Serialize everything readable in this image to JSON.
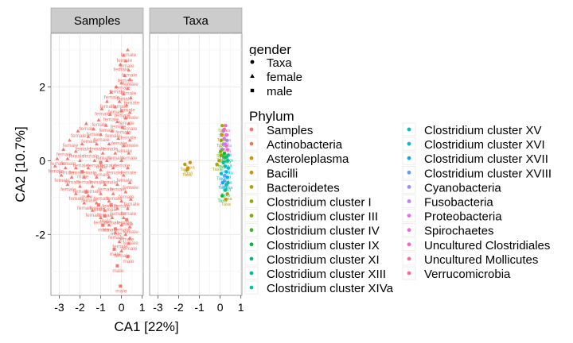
{
  "chart_data": {
    "type": "scatter",
    "facets": [
      "Samples",
      "Taxa"
    ],
    "xlabel": "CA1   [22%]",
    "ylabel": "CA2   [10.7%]",
    "xlim": [
      -3.4,
      1.05
    ],
    "ylim": [
      -3.65,
      3.45
    ],
    "xticks": [
      -3,
      -2,
      -1,
      0,
      1
    ],
    "yticks": [
      -2,
      0,
      2
    ],
    "grid": true,
    "legend_position": "right",
    "shape_legend": {
      "title": "gender",
      "entries": [
        {
          "label": "Taxa",
          "shape": "circle"
        },
        {
          "label": "female",
          "shape": "triangle"
        },
        {
          "label": "male",
          "shape": "square"
        }
      ]
    },
    "color_legend": {
      "title": "Phylum",
      "entries": [
        {
          "label": "Samples",
          "color": "#F8766D"
        },
        {
          "label": "Actinobacteria",
          "color": "#EE7D4E"
        },
        {
          "label": "Asteroleplasma",
          "color": "#DE8C00"
        },
        {
          "label": "Bacilli",
          "color": "#CB9600"
        },
        {
          "label": "Bacteroidetes",
          "color": "#B79F00"
        },
        {
          "label": "Clostridium cluster I",
          "color": "#9DAA00"
        },
        {
          "label": "Clostridium cluster III",
          "color": "#7CAE00"
        },
        {
          "label": "Clostridium cluster IV",
          "color": "#3EB52A"
        },
        {
          "label": "Clostridium cluster IX",
          "color": "#00BA38"
        },
        {
          "label": "Clostridium cluster XI",
          "color": "#00BE6D"
        },
        {
          "label": "Clostridium cluster XIII",
          "color": "#00C08D"
        },
        {
          "label": "Clostridium cluster XIVa",
          "color": "#00C1A9"
        },
        {
          "label": "Clostridium cluster XV",
          "color": "#00BFC4"
        },
        {
          "label": "Clostridium cluster XVI",
          "color": "#00B9E3"
        },
        {
          "label": "Clostridium cluster XVII",
          "color": "#00ADFA"
        },
        {
          "label": "Clostridium cluster XVIII",
          "color": "#619CFF"
        },
        {
          "label": "Cyanobacteria",
          "color": "#9590FF"
        },
        {
          "label": "Fusobacteria",
          "color": "#C77CFF"
        },
        {
          "label": "Proteobacteria",
          "color": "#E76BF3"
        },
        {
          "label": "Spirochaetes",
          "color": "#F564E3"
        },
        {
          "label": "Uncultured Clostridiales",
          "color": "#FF61C3"
        },
        {
          "label": "Uncultured Mollicutes",
          "color": "#FF6C91"
        },
        {
          "label": "Verrucomicrobia",
          "color": "#FF6A98"
        }
      ]
    },
    "series": [
      {
        "facet": "Samples",
        "point_label_words": [
          "female",
          "male"
        ],
        "points": [
          [
            0.3,
            3.0,
            "f"
          ],
          [
            0.2,
            2.7,
            "f"
          ],
          [
            0.1,
            2.85,
            "f"
          ],
          [
            -0.05,
            2.6,
            "f"
          ],
          [
            0.35,
            2.45,
            "f"
          ],
          [
            0.15,
            2.3,
            "f"
          ],
          [
            0.4,
            2.2,
            "f"
          ],
          [
            0.0,
            2.1,
            "f"
          ],
          [
            -0.25,
            2.0,
            "f"
          ],
          [
            0.3,
            1.95,
            "f"
          ],
          [
            -0.5,
            1.85,
            "f"
          ],
          [
            0.1,
            1.8,
            "f"
          ],
          [
            0.45,
            1.7,
            "f"
          ],
          [
            -0.7,
            1.6,
            "f"
          ],
          [
            -0.1,
            1.6,
            "f"
          ],
          [
            0.25,
            1.5,
            "f"
          ],
          [
            -0.3,
            1.45,
            "f"
          ],
          [
            -0.95,
            1.4,
            "f"
          ],
          [
            0.0,
            1.35,
            "f"
          ],
          [
            0.4,
            1.3,
            "f"
          ],
          [
            -0.55,
            1.25,
            "f"
          ],
          [
            0.2,
            1.15,
            "f"
          ],
          [
            -1.1,
            1.1,
            "f"
          ],
          [
            -0.2,
            1.05,
            "f"
          ],
          [
            0.35,
            1.0,
            "f"
          ],
          [
            -0.75,
            0.95,
            "f"
          ],
          [
            0.05,
            0.9,
            "f"
          ],
          [
            -1.7,
            1.0,
            "f"
          ],
          [
            -1.35,
            0.85,
            "f"
          ],
          [
            -0.45,
            0.8,
            "f"
          ],
          [
            0.3,
            0.75,
            "f"
          ],
          [
            -1.0,
            0.7,
            "f"
          ],
          [
            -2.1,
            0.8,
            "f"
          ],
          [
            -1.6,
            0.65,
            "f"
          ],
          [
            -0.15,
            0.6,
            "f"
          ],
          [
            0.4,
            0.55,
            "f"
          ],
          [
            -2.5,
            0.55,
            "f"
          ],
          [
            -1.9,
            0.45,
            "f"
          ],
          [
            -1.2,
            0.45,
            "f"
          ],
          [
            -0.6,
            0.45,
            "f"
          ],
          [
            0.1,
            0.4,
            "f"
          ],
          [
            -2.8,
            0.3,
            "f"
          ],
          [
            -2.2,
            0.25,
            "f"
          ],
          [
            -1.5,
            0.25,
            "f"
          ],
          [
            -0.9,
            0.2,
            "f"
          ],
          [
            -0.3,
            0.2,
            "f"
          ],
          [
            0.35,
            0.2,
            "f"
          ],
          [
            -3.1,
            0.05,
            "f"
          ],
          [
            -2.6,
            0.05,
            "f"
          ],
          [
            -2.0,
            0.0,
            "f"
          ],
          [
            -1.3,
            0.0,
            "f"
          ],
          [
            -0.7,
            0.0,
            "f"
          ],
          [
            0.0,
            0.0,
            "f"
          ],
          [
            -3.2,
            -0.15,
            "f"
          ],
          [
            -2.7,
            -0.2,
            "f"
          ],
          [
            -2.2,
            -0.2,
            "f"
          ],
          [
            -1.6,
            -0.2,
            "f"
          ],
          [
            -1.0,
            -0.25,
            "f"
          ],
          [
            -0.4,
            -0.2,
            "f"
          ],
          [
            0.3,
            -0.2,
            "f"
          ],
          [
            -2.9,
            -0.4,
            "f"
          ],
          [
            -2.4,
            -0.45,
            "f"
          ],
          [
            -1.8,
            -0.45,
            "f"
          ],
          [
            -1.2,
            -0.45,
            "f"
          ],
          [
            -0.6,
            -0.45,
            "f"
          ],
          [
            0.1,
            -0.4,
            "f"
          ],
          [
            -2.6,
            -0.65,
            "f"
          ],
          [
            -2.0,
            -0.7,
            "f"
          ],
          [
            -1.4,
            -0.7,
            "f"
          ],
          [
            -0.8,
            -0.65,
            "f"
          ],
          [
            -0.2,
            -0.65,
            "f"
          ],
          [
            0.4,
            -0.6,
            "f"
          ],
          [
            -2.2,
            -0.9,
            "f"
          ],
          [
            -1.6,
            -0.95,
            "f"
          ],
          [
            -1.0,
            -0.9,
            "f"
          ],
          [
            -0.4,
            -0.9,
            "f"
          ],
          [
            0.2,
            -0.85,
            "f"
          ],
          [
            -1.8,
            -1.15,
            "f"
          ],
          [
            -1.2,
            -1.15,
            "f"
          ],
          [
            -0.6,
            -1.1,
            "f"
          ],
          [
            0.0,
            -1.1,
            "f"
          ],
          [
            0.45,
            -1.05,
            "f"
          ],
          [
            -1.4,
            -1.35,
            "f"
          ],
          [
            -0.8,
            -1.35,
            "f"
          ],
          [
            -0.2,
            -1.3,
            "f"
          ],
          [
            0.3,
            -1.3,
            "f"
          ],
          [
            -1.0,
            -1.55,
            "f"
          ],
          [
            -0.45,
            -1.55,
            "f"
          ],
          [
            0.1,
            -1.55,
            "f"
          ],
          [
            -0.6,
            -1.75,
            "f"
          ],
          [
            0.0,
            -1.75,
            "f"
          ],
          [
            0.4,
            -1.8,
            "f"
          ],
          [
            -0.3,
            -1.95,
            "f"
          ],
          [
            0.2,
            -2.0,
            "f"
          ],
          [
            -0.1,
            -2.2,
            "f"
          ],
          [
            0.35,
            -2.25,
            "f"
          ],
          [
            0.0,
            -2.45,
            "f"
          ],
          [
            0.4,
            -2.1,
            "f"
          ],
          [
            -1.7,
            -0.85,
            "m"
          ],
          [
            -1.1,
            -1.2,
            "m"
          ],
          [
            -0.8,
            -1.5,
            "m"
          ],
          [
            -0.9,
            -1.75,
            "m"
          ],
          [
            -0.3,
            -1.85,
            "m"
          ],
          [
            -1.0,
            -0.05,
            "m"
          ],
          [
            -0.35,
            -2.4,
            "m"
          ],
          [
            -0.2,
            -2.85,
            "m"
          ],
          [
            -0.05,
            -3.4,
            "m"
          ],
          [
            0.3,
            -2.6,
            "m"
          ],
          [
            -0.5,
            -1.2,
            "m"
          ],
          [
            0.25,
            -1.6,
            "m"
          ],
          [
            -1.9,
            -0.3,
            "m"
          ]
        ]
      },
      {
        "facet": "Taxa",
        "point_label_words": [
          "Taxa"
        ],
        "points": [
          [
            -1.7,
            -0.1,
            4
          ],
          [
            -1.55,
            -0.2,
            4
          ],
          [
            -1.45,
            -0.05,
            2
          ],
          [
            -1.6,
            -0.25,
            3
          ],
          [
            -0.05,
            0.0,
            4
          ],
          [
            -0.15,
            -0.1,
            5
          ],
          [
            0.05,
            0.15,
            3
          ],
          [
            0.1,
            0.95,
            5
          ],
          [
            0.15,
            0.8,
            16
          ],
          [
            0.2,
            0.6,
            17
          ],
          [
            0.05,
            0.55,
            6
          ],
          [
            0.25,
            0.45,
            18
          ],
          [
            0.3,
            0.7,
            19
          ],
          [
            0.35,
            0.3,
            20
          ],
          [
            0.1,
            0.3,
            7
          ],
          [
            0.2,
            0.2,
            8
          ],
          [
            0.3,
            0.1,
            9
          ],
          [
            0.35,
            0.0,
            10
          ],
          [
            0.15,
            -0.05,
            11
          ],
          [
            0.25,
            -0.15,
            12
          ],
          [
            0.3,
            -0.3,
            13
          ],
          [
            0.35,
            -0.45,
            14
          ],
          [
            0.2,
            -0.55,
            15
          ],
          [
            0.3,
            -0.65,
            11
          ],
          [
            0.25,
            -0.8,
            10
          ],
          [
            0.35,
            -0.9,
            4
          ],
          [
            0.1,
            -0.95,
            8
          ],
          [
            0.3,
            0.4,
            21
          ],
          [
            0.2,
            0.85,
            22
          ],
          [
            0.4,
            0.15,
            11
          ],
          [
            0.15,
            0.45,
            17
          ],
          [
            0.05,
            -0.35,
            12
          ],
          [
            0.28,
            -1.05,
            3
          ],
          [
            0.4,
            -0.2,
            13
          ],
          [
            0.18,
            0.1,
            9
          ],
          [
            0.12,
            -0.6,
            14
          ],
          [
            0.33,
            0.55,
            16
          ],
          [
            0.22,
            -0.4,
            15
          ],
          [
            0.08,
            0.7,
            4
          ],
          [
            0.38,
            -0.6,
            11
          ],
          [
            0.26,
            0.95,
            19
          ],
          [
            0.02,
            0.25,
            6
          ]
        ]
      }
    ]
  }
}
